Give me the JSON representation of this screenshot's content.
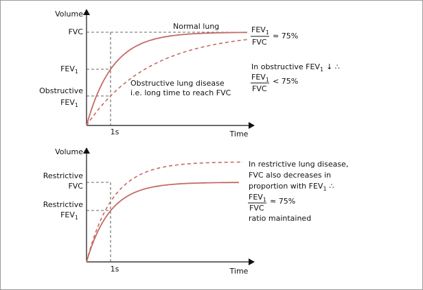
{
  "top": {
    "y_axis": "Volume",
    "x_axis": "Time",
    "fvc": "FVC",
    "fev1": {
      "main": "FEV",
      "sub": "1"
    },
    "obstructive_fev1": {
      "line1": "Obstructive",
      "main": "FEV",
      "sub": "1"
    },
    "tick": "1s",
    "normal_label": "Normal lung",
    "obstructive_label": [
      "Obstructive lung disease",
      "i.e. long time to reach FVC"
    ],
    "ratio": {
      "numerator": {
        "main": "FEV",
        "sub": "1"
      },
      "denominator": "FVC",
      "value": "≈ 75%"
    },
    "note": {
      "text": "In obstructive FEV",
      "sub": "1",
      "rest": "↓ ∴"
    },
    "note_ratio": {
      "numerator": {
        "main": "FEV",
        "sub": "1"
      },
      "denominator": "FVC",
      "value": "< 75%"
    }
  },
  "bottom": {
    "y_axis": "Volume",
    "x_axis": "Time",
    "restrictive_fvc": [
      "Restrictive",
      "FVC"
    ],
    "restrictive_fev1": {
      "line1": "Restrictive",
      "main": "FEV",
      "sub": "1"
    },
    "tick": "1s",
    "note": {
      "line1": "In restrictive lung disease,",
      "line2": "FVC also decreases in",
      "line3": "proportion with FEV",
      "line3_sub": "1",
      "line3_rest": "∴"
    },
    "ratio": {
      "numerator": {
        "main": "FEV",
        "sub": "1"
      },
      "denominator": "FVC",
      "value": "≈ 75%"
    },
    "footer": "ratio maintained"
  }
}
